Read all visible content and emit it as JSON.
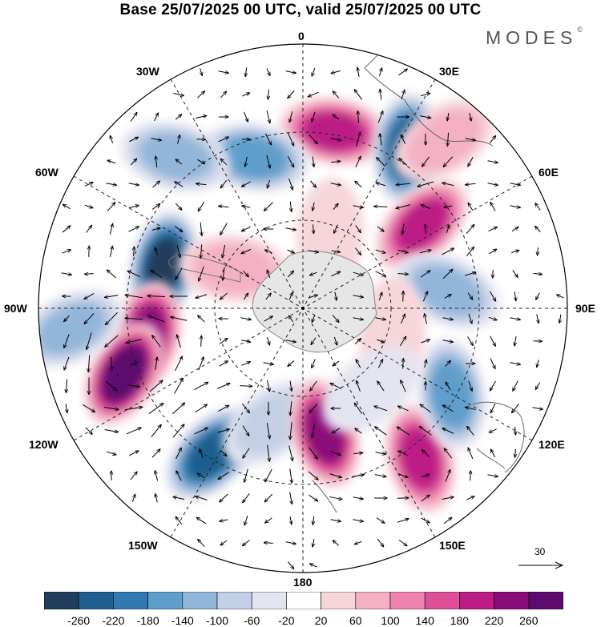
{
  "title": "Base 25/07/2025 00 UTC, valid 25/07/2025 00 UTC",
  "brand": {
    "name": "MODES",
    "mark": "©"
  },
  "meridian_labels": {
    "deg0": "0",
    "deg30e": "30E",
    "deg60e": "60E",
    "deg90e": "90E",
    "deg120e": "120E",
    "deg150e": "150E",
    "deg180": "180",
    "deg150w": "150W",
    "deg120w": "120W",
    "deg90w": "90W",
    "deg60w": "60W",
    "deg30w": "30W"
  },
  "reference_vector": {
    "label": "30"
  },
  "colorbar": {
    "colors": [
      "#203d5c",
      "#1f5f8f",
      "#3279b4",
      "#5f9dcb",
      "#92b5da",
      "#c3cfe6",
      "#e4e4f0",
      "#ffffff",
      "#f7d6db",
      "#f4b0c4",
      "#ee84ae",
      "#df4f98",
      "#bb1b85",
      "#8a0b78",
      "#5c0a6e"
    ],
    "labels": [
      "-260",
      "-220",
      "-180",
      "-140",
      "-100",
      "-60",
      "-20",
      "20",
      "60",
      "100",
      "140",
      "180",
      "220",
      "260"
    ]
  },
  "anomaly_centers": [
    {
      "lon": 10,
      "colat": 0.68,
      "value": 200
    },
    {
      "lon": -18,
      "colat": 0.6,
      "value": -140
    },
    {
      "lon": -40,
      "colat": 0.75,
      "value": -110
    },
    {
      "lon": 33,
      "colat": 0.72,
      "value": -250
    },
    {
      "lon": 55,
      "colat": 0.55,
      "value": 210
    },
    {
      "lon": 40,
      "colat": 0.83,
      "value": 70
    },
    {
      "lon": 83,
      "colat": 0.55,
      "value": -130
    },
    {
      "lon": -73,
      "colat": 0.55,
      "value": -270
    },
    {
      "lon": -100,
      "colat": 0.6,
      "value": 220
    },
    {
      "lon": -110,
      "colat": 0.72,
      "value": 260
    },
    {
      "lon": -95,
      "colat": 0.88,
      "value": -110
    },
    {
      "lon": -148,
      "colat": 0.65,
      "value": -240
    },
    {
      "lon": -165,
      "colat": 0.45,
      "value": -90
    },
    {
      "lon": 170,
      "colat": 0.48,
      "value": 240
    },
    {
      "lon": 142,
      "colat": 0.72,
      "value": 190
    },
    {
      "lon": 120,
      "colat": 0.65,
      "value": -160
    },
    {
      "lon": 105,
      "colat": 0.35,
      "value": 50
    },
    {
      "lon": 140,
      "colat": 0.4,
      "value": -40
    },
    {
      "lon": -60,
      "colat": 0.3,
      "value": 80
    },
    {
      "lon": 20,
      "colat": 0.3,
      "value": 40
    }
  ]
}
